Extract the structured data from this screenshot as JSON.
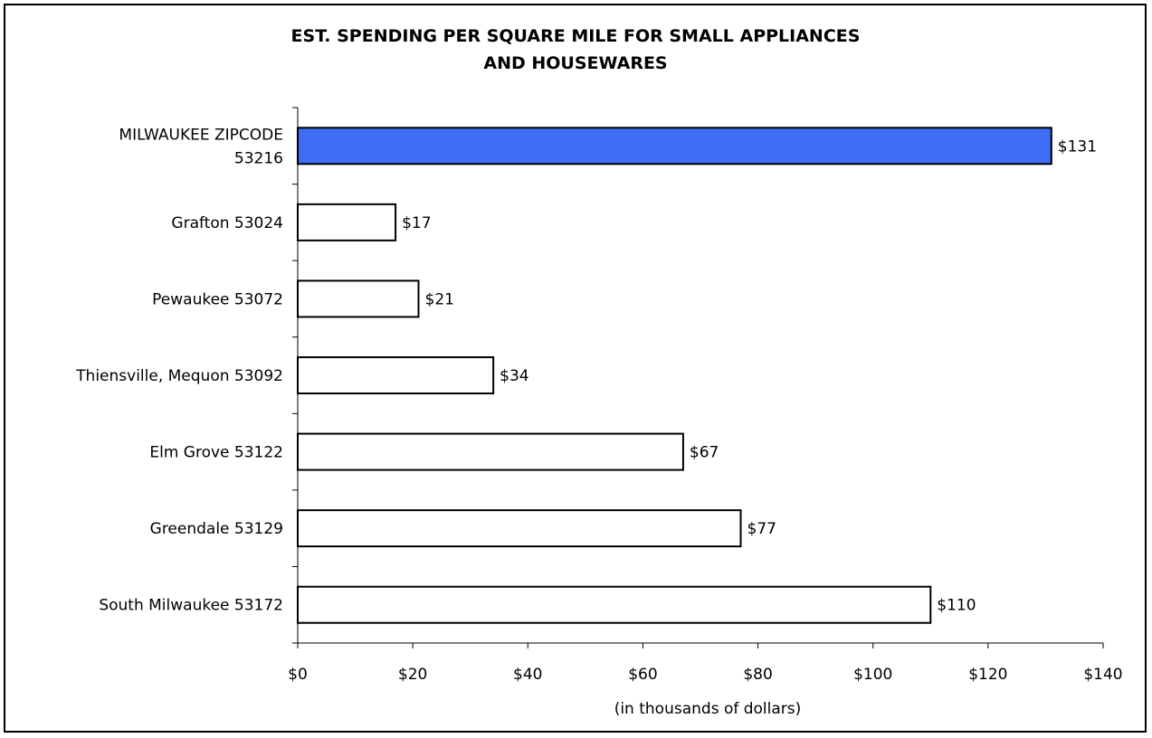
{
  "chart_data": {
    "type": "bar",
    "orientation": "horizontal",
    "title_lines": [
      "EST. SPENDING PER SQUARE MILE FOR SMALL APPLIANCES",
      "AND HOUSEWARES"
    ],
    "xlabel": "(in thousands of dollars)",
    "ylabel": "",
    "categories": [
      [
        "MILWAUKEE ZIPCODE",
        "53216"
      ],
      [
        "Grafton 53024"
      ],
      [
        "Pewaukee 53072"
      ],
      [
        "Thiensville, Mequon 53092"
      ],
      [
        "Elm Grove 53122"
      ],
      [
        "Greendale 53129"
      ],
      [
        "South Milwaukee 53172"
      ]
    ],
    "values": [
      131,
      17,
      21,
      34,
      67,
      77,
      110
    ],
    "value_labels": [
      "$131",
      "$17",
      "$21",
      "$34",
      "$67",
      "$77",
      "$110"
    ],
    "bar_colors": [
      "#3f6df5",
      "#ffffff",
      "#ffffff",
      "#ffffff",
      "#ffffff",
      "#ffffff",
      "#ffffff"
    ],
    "xlim": [
      0,
      140
    ],
    "xticks": [
      0,
      20,
      40,
      60,
      80,
      100,
      120,
      140
    ],
    "xtick_labels": [
      "$0",
      "$20",
      "$40",
      "$60",
      "$80",
      "$100",
      "$120",
      "$140"
    ],
    "grid": false,
    "legend": "none"
  }
}
